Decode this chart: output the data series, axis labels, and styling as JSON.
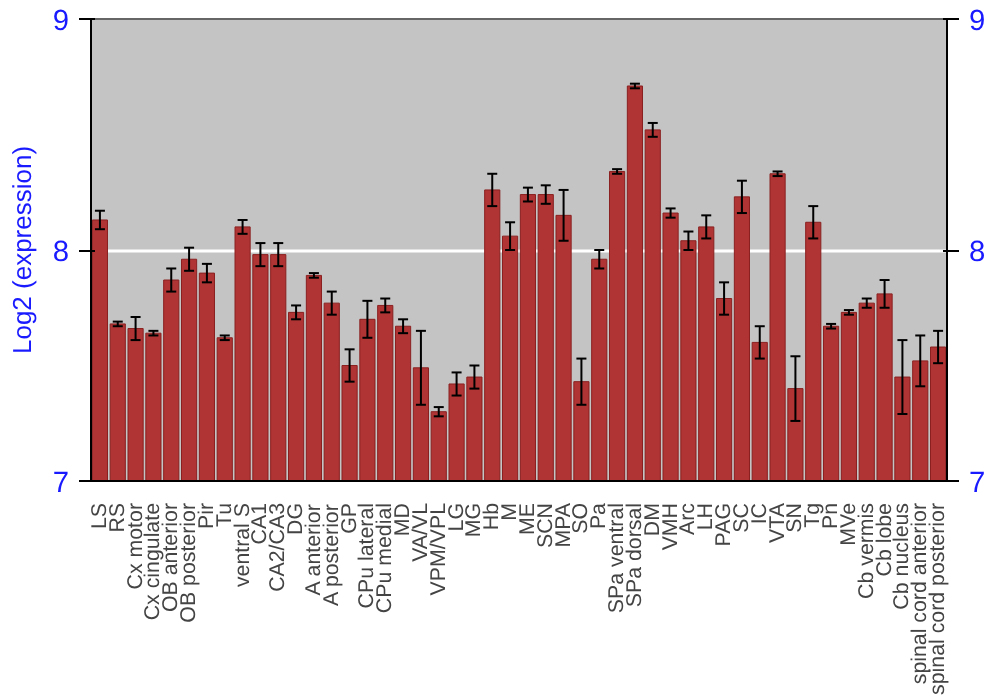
{
  "chart_data": {
    "type": "bar",
    "ylabel": "Log2 (expression)",
    "categories": [
      "LS",
      "RS",
      "Cx motor",
      "Cx cingulate",
      "OB anterior",
      "OB posterior",
      "Pir",
      "Tu",
      "ventral S",
      "CA1",
      "CA2/CA3",
      "DG",
      "A anterior",
      "A posterior",
      "GP",
      "CPu lateral",
      "CPu medial",
      "MD",
      "VA/VL",
      "VPM/VPL",
      "LG",
      "MG",
      "Hb",
      "M",
      "ME",
      "SCN",
      "MPA",
      "SO",
      "Pa",
      "SPa ventral",
      "SPa dorsal",
      "DM",
      "VMH",
      "Arc",
      "LH",
      "PAG",
      "SC",
      "IC",
      "VTA",
      "SN",
      "Tg",
      "Pn",
      "MVe",
      "Cb vermis",
      "Cb lobe",
      "Cb nucleus",
      "spinal cord anterior",
      "spinal cord posterior"
    ],
    "values": [
      8.13,
      7.68,
      7.66,
      7.64,
      7.87,
      7.96,
      7.9,
      7.62,
      8.1,
      7.98,
      7.98,
      7.73,
      7.89,
      7.77,
      7.5,
      7.7,
      7.76,
      7.67,
      7.49,
      7.3,
      7.42,
      7.45,
      8.26,
      8.06,
      8.24,
      8.24,
      8.15,
      7.43,
      7.96,
      8.34,
      8.71,
      8.52,
      8.16,
      8.04,
      8.1,
      7.79,
      8.23,
      7.6,
      8.33,
      7.4,
      8.12,
      7.67,
      7.73,
      7.77,
      7.81,
      7.45,
      7.52,
      7.58
    ],
    "errors": [
      0.04,
      0.01,
      0.05,
      0.01,
      0.05,
      0.05,
      0.04,
      0.01,
      0.03,
      0.05,
      0.05,
      0.03,
      0.01,
      0.05,
      0.07,
      0.08,
      0.03,
      0.03,
      0.16,
      0.02,
      0.05,
      0.05,
      0.07,
      0.06,
      0.03,
      0.04,
      0.11,
      0.1,
      0.04,
      0.01,
      0.01,
      0.03,
      0.02,
      0.04,
      0.05,
      0.07,
      0.07,
      0.07,
      0.01,
      0.14,
      0.07,
      0.01,
      0.01,
      0.02,
      0.06,
      0.16,
      0.11,
      0.07
    ],
    "color": "#b03434",
    "ylim": [
      7,
      9
    ],
    "yticks": [
      7,
      8,
      9
    ],
    "y2lim": [
      7,
      9
    ],
    "y2ticks": [
      7,
      8,
      9
    ],
    "grid": "y"
  }
}
